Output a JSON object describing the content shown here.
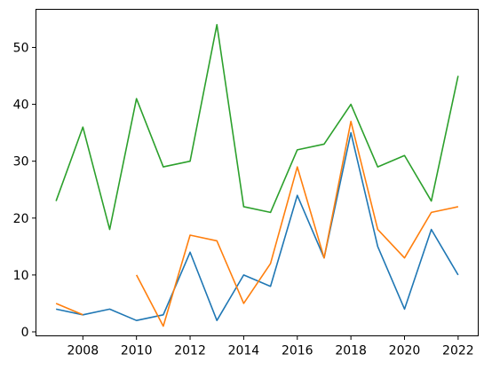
{
  "chart_data": {
    "type": "line",
    "title": "",
    "xlabel": "",
    "ylabel": "",
    "x": [
      2007,
      2008,
      2009,
      2010,
      2011,
      2012,
      2013,
      2014,
      2015,
      2016,
      2017,
      2018,
      2019,
      2020,
      2021,
      2022
    ],
    "xlim": [
      2006.25,
      2022.75
    ],
    "ylim": [
      -0.7,
      56.7
    ],
    "x_ticks": [
      2008,
      2010,
      2012,
      2014,
      2016,
      2018,
      2020,
      2022
    ],
    "x_tick_labels": [
      "2008",
      "2010",
      "2012",
      "2014",
      "2016",
      "2018",
      "2020",
      "2022"
    ],
    "y_ticks": [
      0,
      10,
      20,
      30,
      40,
      50
    ],
    "y_tick_labels": [
      "0",
      "10",
      "20",
      "30",
      "40",
      "50"
    ],
    "grid": false,
    "legend": "none",
    "series": [
      {
        "color": "#1f77b4",
        "values": [
          4,
          3,
          4,
          2,
          3,
          14,
          2,
          10,
          8,
          24,
          13,
          35,
          15,
          4,
          18,
          10
        ]
      },
      {
        "color": "#ff7f0e",
        "values": [
          5,
          3,
          null,
          10,
          1,
          17,
          16,
          5,
          12,
          29,
          13,
          37,
          18,
          13,
          21,
          22
        ]
      },
      {
        "color": "#2ca02c",
        "values": [
          23,
          36,
          18,
          41,
          29,
          30,
          54,
          22,
          21,
          32,
          33,
          40,
          29,
          31,
          23,
          45
        ]
      }
    ]
  }
}
